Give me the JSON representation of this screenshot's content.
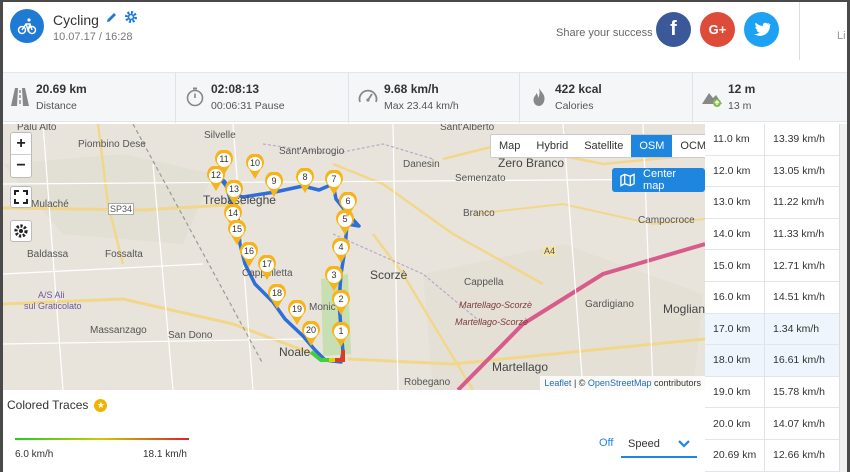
{
  "header": {
    "title": "Cycling",
    "date": "10.07.17 / 16:28",
    "share_text": "Share your success",
    "social": {
      "facebook": "f",
      "google": "G+",
      "twitter": "t"
    },
    "cut_text": "Li"
  },
  "stats": [
    {
      "icon": "road-icon",
      "value": "20.69 km",
      "label": "Distance"
    },
    {
      "icon": "stopwatch-icon",
      "value": "02:08:13",
      "label": "00:06:31 Pause"
    },
    {
      "icon": "speedometer-icon",
      "value": "9.68 km/h",
      "label": "Max 23.44 km/h"
    },
    {
      "icon": "flame-icon",
      "value": "422 kcal",
      "label": "Calories"
    },
    {
      "icon": "elevation-icon",
      "value": "12 m",
      "label": "13 m"
    }
  ],
  "map": {
    "zoom_in": "+",
    "zoom_out": "−",
    "layers": [
      "Map",
      "Hybrid",
      "Satellite",
      "OSM",
      "OCM"
    ],
    "active_layer": "OSM",
    "center_map": "Center map",
    "attribution": {
      "leaflet": "Leaflet",
      "sep": " | © ",
      "osm": "OpenStreetMap",
      "rest": " contributors"
    },
    "places": {
      "palu_alto": "Palu Alto",
      "piombino": "Piombino Dese",
      "silvelle": "Silvelle",
      "sant_ambrogio": "Sant'Ambrogio",
      "sant_alberto": "Sant'Alberto",
      "zero_branco": "Zero Branco",
      "danesin": "Danesin",
      "semenzato": "Semenzato",
      "mulache": "Mulaché",
      "sp34": "SP34",
      "trebaseleghe": "Trebaseleghe",
      "branco": "Branco",
      "campocroce": "Campocroce",
      "baldassa": "Baldassa",
      "fossalta": "Fossalta",
      "cappelletta": "Cappelletta",
      "scorze": "Scorzè",
      "a4": "A4",
      "cappella": "Cappella",
      "asali": "A/S Ali",
      "graticolato": "sul Graticolato",
      "gardigiano": "Gardigiano",
      "mogliano": "Moglian",
      "massanzago": "Massanzago",
      "san_dono": "San Dono",
      "martellago_scorze1": "Martellago-Scorzè",
      "martellago_scorze2": "Martellago-Scorzè",
      "noale": "Noale",
      "martellago": "Martellago",
      "robegano": "Robegano",
      "moniego": "Monic"
    },
    "markers": [
      "1",
      "2",
      "3",
      "4",
      "5",
      "6",
      "7",
      "8",
      "9",
      "10",
      "11",
      "12",
      "13",
      "14",
      "15",
      "16",
      "17",
      "18",
      "19",
      "20"
    ]
  },
  "traces": {
    "title": "Colored Traces",
    "min": "6.0 km/h",
    "max": "18.1 km/h",
    "off": "Off",
    "select": "Speed"
  },
  "table": [
    {
      "km": "11.0 km",
      "speed": "13.39 km/h"
    },
    {
      "km": "12.0 km",
      "speed": "13.05 km/h"
    },
    {
      "km": "13.0 km",
      "speed": "11.22 km/h"
    },
    {
      "km": "14.0 km",
      "speed": "11.33 km/h"
    },
    {
      "km": "15.0 km",
      "speed": "12.71 km/h"
    },
    {
      "km": "16.0 km",
      "speed": "14.51 km/h"
    },
    {
      "km": "17.0 km",
      "speed": "1.34 km/h"
    },
    {
      "km": "18.0 km",
      "speed": "16.61 km/h"
    },
    {
      "km": "19.0 km",
      "speed": "15.78 km/h"
    },
    {
      "km": "20.0 km",
      "speed": "14.07 km/h"
    },
    {
      "km": "20.69 km",
      "speed": "12.66 km/h"
    }
  ]
}
